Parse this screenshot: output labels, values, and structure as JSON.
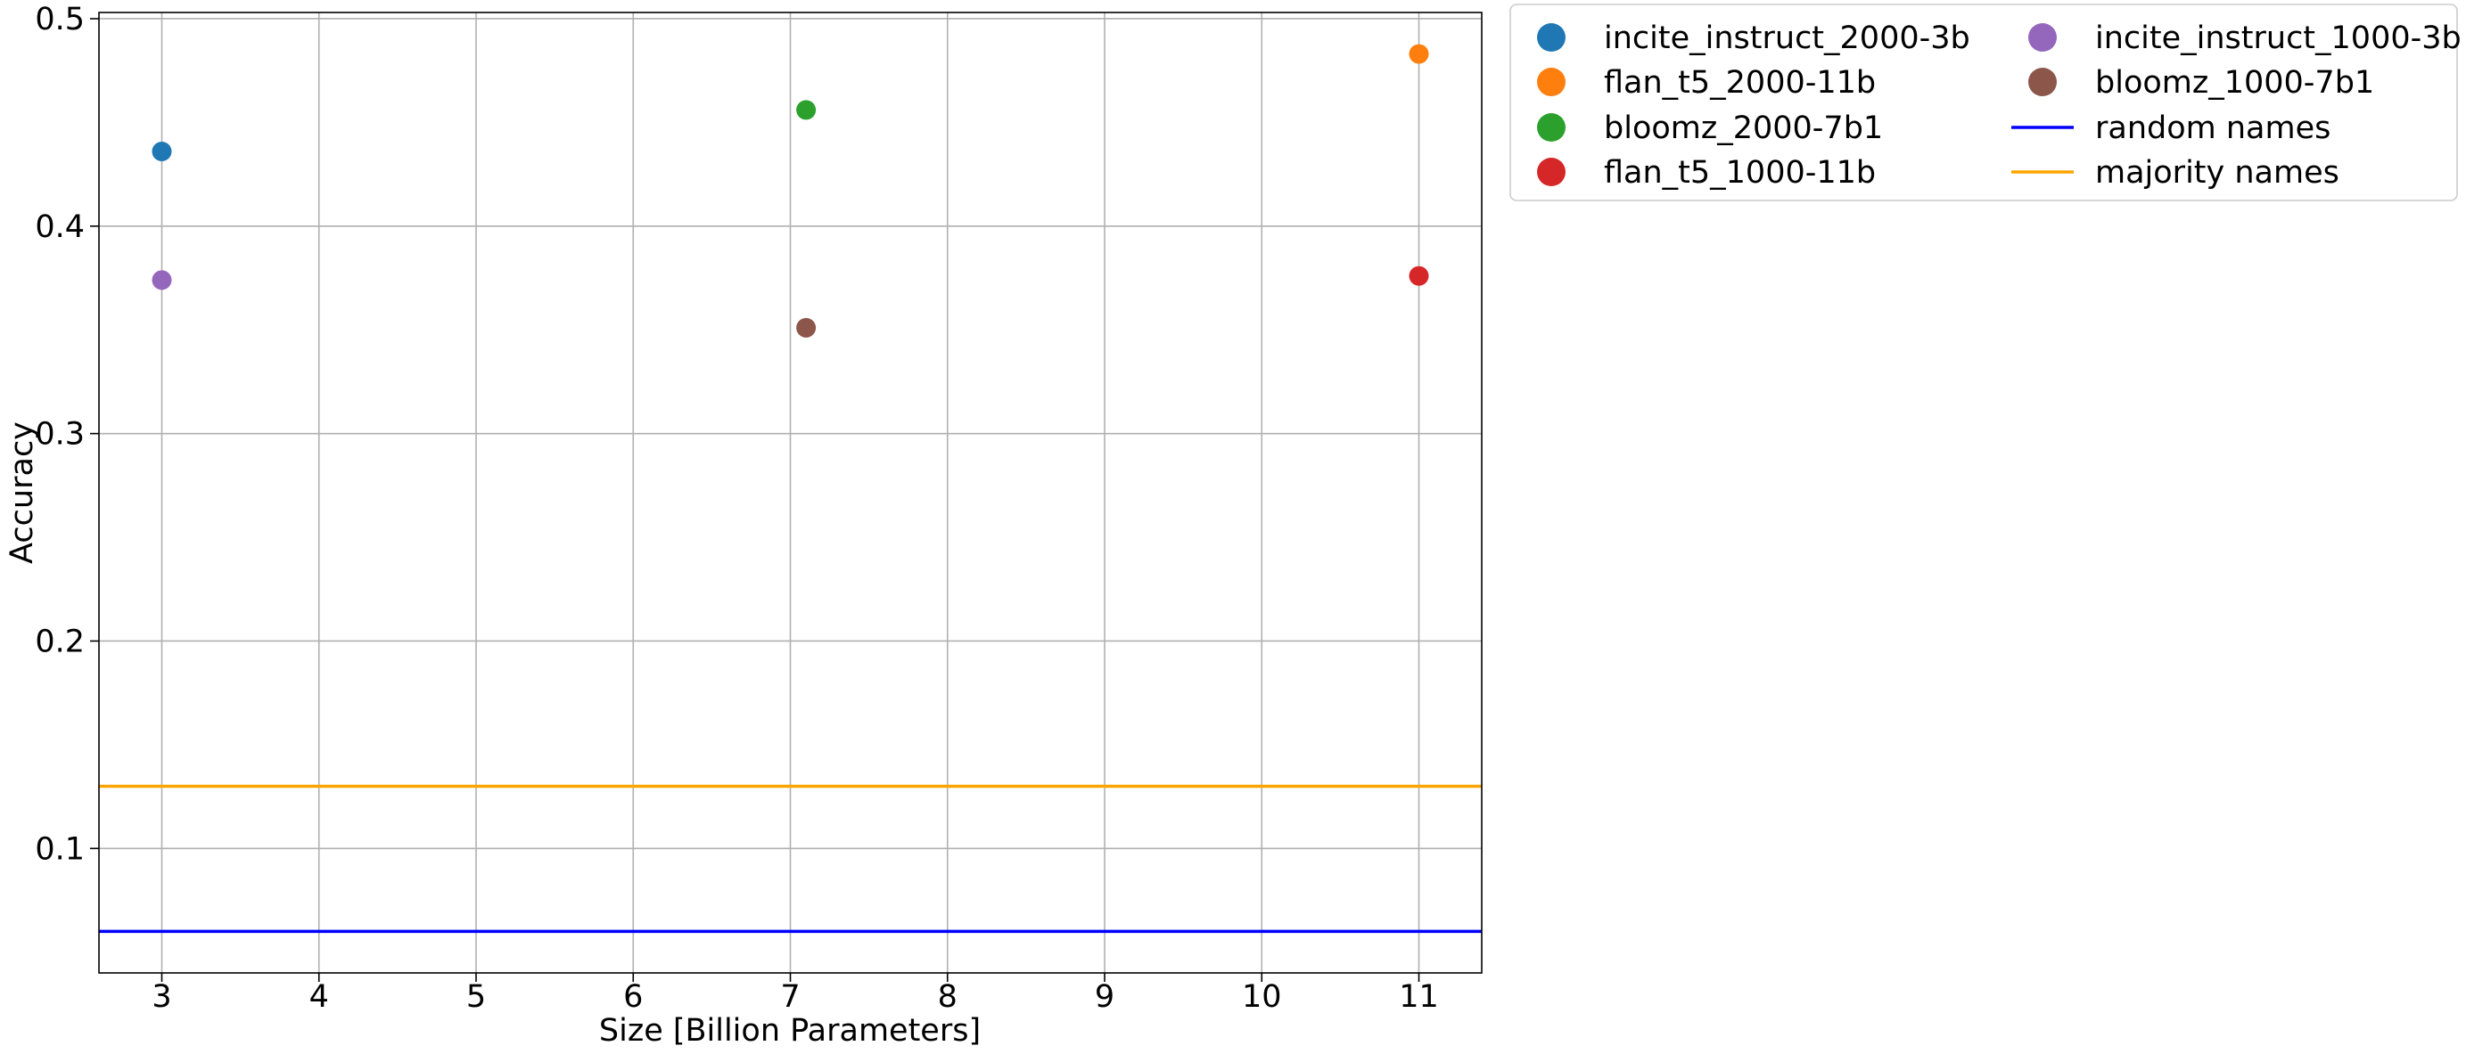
{
  "chart_data": {
    "type": "scatter",
    "xlabel": "Size [Billion Parameters]",
    "ylabel": "Accuracy",
    "xlim": [
      2.6,
      11.4
    ],
    "ylim": [
      0.04,
      0.503
    ],
    "xticks": [
      3,
      4,
      5,
      6,
      7,
      8,
      9,
      10,
      11
    ],
    "yticks": [
      0.1,
      0.2,
      0.3,
      0.4,
      0.5
    ],
    "xtick_labels": [
      "3",
      "4",
      "5",
      "6",
      "7",
      "8",
      "9",
      "10",
      "11"
    ],
    "ytick_labels": [
      "0.1",
      "0.2",
      "0.3",
      "0.4",
      "0.5"
    ],
    "grid": true,
    "legend_position": "outside-top-right",
    "series": [
      {
        "name": "incite_instruct_2000-3b",
        "color": "#1f77b4",
        "x": 3.0,
        "y": 0.436
      },
      {
        "name": "flan_t5_2000-11b",
        "color": "#ff7f0e",
        "x": 11.0,
        "y": 0.483
      },
      {
        "name": "bloomz_2000-7b1",
        "color": "#2ca02c",
        "x": 7.1,
        "y": 0.456
      },
      {
        "name": "flan_t5_1000-11b",
        "color": "#d62728",
        "x": 11.0,
        "y": 0.376
      },
      {
        "name": "incite_instruct_1000-3b",
        "color": "#9467bd",
        "x": 3.0,
        "y": 0.374
      },
      {
        "name": "bloomz_1000-7b1",
        "color": "#8c564b",
        "x": 7.1,
        "y": 0.351
      }
    ],
    "hlines": [
      {
        "name": "random names",
        "color": "#0000ff",
        "y": 0.06
      },
      {
        "name": "majority names",
        "color": "#ffa500",
        "y": 0.13
      }
    ]
  }
}
